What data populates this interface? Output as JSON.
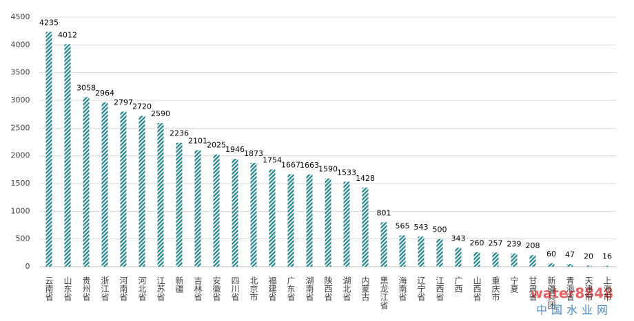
{
  "chart_data": {
    "type": "bar",
    "categories": [
      "云南省",
      "山东省",
      "贵州省",
      "浙江省",
      "河南省",
      "河北省",
      "江苏省",
      "新疆",
      "吉林省",
      "安徽省",
      "四川省",
      "北京市",
      "福建省",
      "广东省",
      "湖南省",
      "陕西省",
      "湖北省",
      "内蒙古",
      "黑龙江省",
      "海南省",
      "辽宁省",
      "江西省",
      "广西",
      "山西省",
      "重庆市",
      "宁夏",
      "甘肃省",
      "新疆兵团",
      "青海省",
      "天津市",
      "上海市"
    ],
    "values": [
      4235,
      4012,
      3058,
      2964,
      2797,
      2720,
      2590,
      2236,
      2101,
      2025,
      1946,
      1873,
      1754,
      1667,
      1663,
      1590,
      1533,
      1428,
      801,
      565,
      543,
      500,
      343,
      260,
      257,
      239,
      208,
      60,
      47,
      20,
      16
    ],
    "color": "#2f8a8f",
    "ylim": [
      0,
      4500
    ],
    "yticks": [
      0,
      500,
      1000,
      1500,
      2000,
      2500,
      3000,
      3500,
      4000,
      4500
    ],
    "grid": true,
    "watermark": [
      "water8848",
      "中国水业网"
    ]
  }
}
